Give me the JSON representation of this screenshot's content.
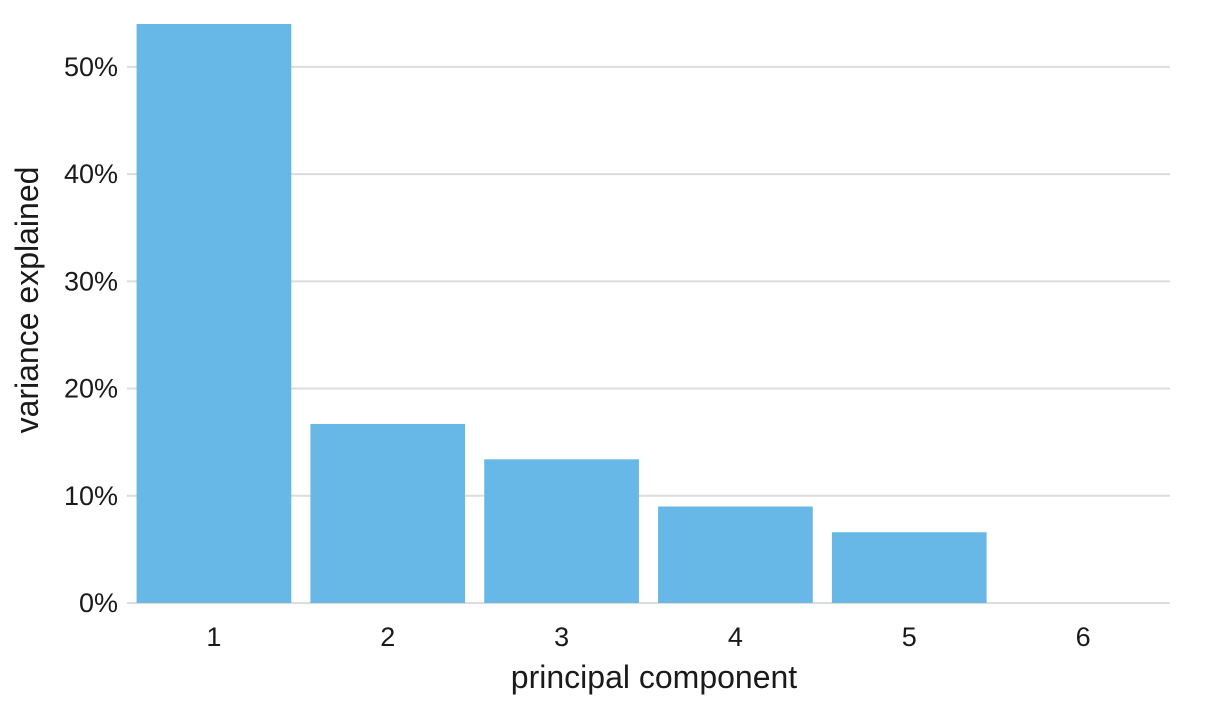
{
  "chart_data": {
    "type": "bar",
    "categories": [
      "1",
      "2",
      "3",
      "4",
      "5",
      "6"
    ],
    "values": [
      54.0,
      16.7,
      13.4,
      9.0,
      6.6,
      0.0
    ],
    "value_unit": "%",
    "title": "",
    "xlabel": "principal component",
    "ylabel": "variance explained",
    "ylim": [
      0,
      54
    ],
    "yticks": [
      0,
      10,
      20,
      30,
      40,
      50
    ],
    "ytick_labels": [
      "0%",
      "10%",
      "20%",
      "30%",
      "40%",
      "50%"
    ],
    "grid": "horizontal",
    "legend": "none",
    "colors": {
      "bar": "#67b8e6",
      "grid": "#dcdcdc",
      "text": "#1a1a1a"
    }
  }
}
